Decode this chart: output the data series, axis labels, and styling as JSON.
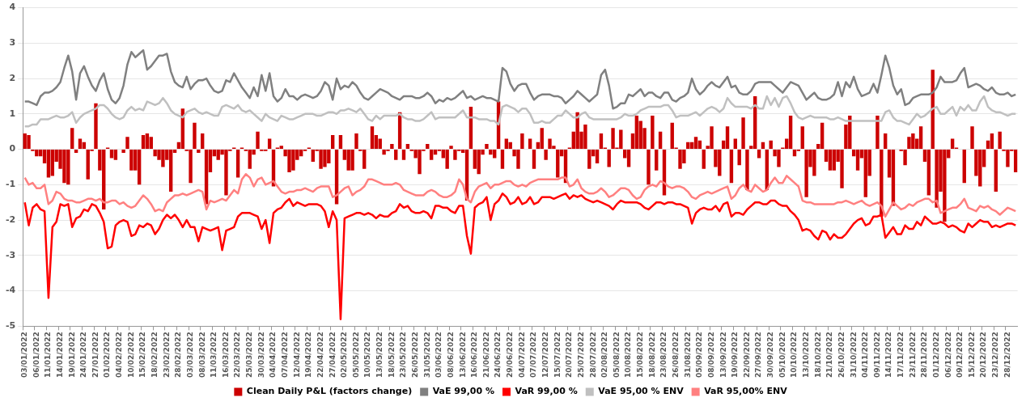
{
  "chart_data": {
    "type": "bar",
    "categories": [
      "03/01/2022",
      null,
      null,
      "06/01/2022",
      null,
      null,
      "11/01/2022",
      null,
      null,
      "14/01/2022",
      null,
      null,
      "19/01/2022",
      null,
      null,
      "24/01/2022",
      null,
      null,
      "27/01/2022",
      null,
      null,
      "01/02/2022",
      null,
      null,
      "04/02/2022",
      null,
      null,
      "10/02/2022",
      null,
      null,
      "15/02/2022",
      null,
      null,
      "18/02/2022",
      null,
      null,
      "23/02/2022",
      null,
      null,
      "28/02/2022",
      null,
      null,
      "03/03/2022",
      null,
      null,
      "08/03/2022",
      null,
      null,
      "11/03/2022",
      null,
      null,
      "16/03/2022",
      null,
      null,
      "22/03/2022",
      null,
      null,
      "25/03/2022",
      null,
      null,
      "30/03/2022",
      null,
      null,
      "04/04/2022",
      null,
      null,
      "07/04/2022",
      null,
      null,
      "12/04/2022",
      null,
      null,
      "19/04/2022",
      null,
      null,
      "22/04/2022",
      null,
      null,
      "27/04/2022",
      null,
      null,
      "02/05/2022",
      null,
      null,
      "05/05/2022",
      null,
      null,
      "10/05/2022",
      null,
      null,
      "13/05/2022",
      null,
      null,
      "18/05/2022",
      null,
      null,
      "23/05/2022",
      null,
      null,
      "26/05/2022",
      null,
      null,
      "31/05/2022",
      null,
      null,
      "03/06/2022",
      null,
      null,
      "08/06/2022",
      null,
      null,
      "13/06/2022",
      null,
      null,
      "16/06/2022",
      null,
      null,
      "21/06/2022",
      null,
      null,
      "24/06/2022",
      null,
      null,
      "29/06/2022",
      null,
      null,
      "04/07/2022",
      null,
      null,
      "07/07/2022",
      null,
      null,
      "12/07/2022",
      null,
      null,
      "15/07/2022",
      null,
      null,
      "20/07/2022",
      null,
      null,
      "25/07/2022",
      null,
      null,
      "28/07/2022",
      null,
      null,
      "02/08/2022",
      null,
      null,
      "05/08/2022",
      null,
      null,
      "10/08/2022",
      null,
      null,
      "15/08/2022",
      null,
      null,
      "18/08/2022",
      null,
      null,
      "23/08/2022",
      null,
      null,
      "26/08/2022",
      null,
      null,
      "31/08/2022",
      null,
      null,
      "05/09/2022",
      null,
      null,
      "08/09/2022",
      null,
      null,
      "13/09/2022",
      null,
      null,
      "19/09/2022",
      null,
      null,
      "22/09/2022",
      null,
      null,
      "27/09/2022",
      null,
      null,
      "30/09/2022",
      null,
      null,
      "05/10/2022",
      null,
      null,
      "10/10/2022",
      null,
      null,
      "13/10/2022",
      null,
      null,
      "18/10/2022",
      null,
      null,
      "21/10/2022",
      null,
      null,
      "26/10/2022",
      null,
      null,
      "31/10/2022",
      null,
      null,
      "04/11/2022",
      null,
      null,
      "09/11/2022",
      null,
      null,
      "14/11/2022",
      null,
      null,
      "17/11/2022",
      null,
      null,
      "23/11/2022",
      null,
      null,
      "28/11/2022",
      null,
      null,
      "01/12/2022",
      null,
      null,
      "06/12/2022",
      null,
      null,
      "09/12/2022",
      null,
      null,
      "15/12/2022",
      null,
      null,
      "20/12/2022",
      null,
      null,
      "23/12/2022",
      null,
      null,
      "28/12/2022",
      null,
      null
    ],
    "series": [
      {
        "name": "Clean Daily P&L (factors change)",
        "color": "#cc0000",
        "values": [
          0.45,
          0.4,
          -0.05,
          -0.2,
          -0.2,
          -0.4,
          -0.8,
          -0.75,
          -0.35,
          -0.55,
          -0.95,
          -1.0,
          0.6,
          -0.1,
          0.3,
          0.2,
          -0.85,
          -0.05,
          1.3,
          -0.6,
          -1.7,
          0.05,
          -0.25,
          -0.3,
          0.0,
          -0.1,
          0.35,
          -0.6,
          -0.6,
          -1.0,
          0.4,
          0.45,
          0.35,
          -0.2,
          -0.3,
          -0.5,
          -0.3,
          -1.2,
          -0.1,
          0.2,
          1.15,
          -0.05,
          -0.95,
          0.75,
          -0.1,
          0.45,
          -1.55,
          -0.65,
          -0.2,
          -0.3,
          -0.15,
          -1.3,
          -0.05,
          0.05,
          -0.8,
          0.05,
          -0.05,
          -0.55,
          -0.15,
          0.5,
          -0.05,
          -0.05,
          0.3,
          -1.05,
          0.05,
          0.1,
          -0.2,
          -0.65,
          -0.6,
          -0.3,
          -0.2,
          -0.05,
          0.05,
          -0.35,
          -0.05,
          -0.55,
          -0.5,
          -0.4,
          0.4,
          -1.55,
          0.4,
          -0.3,
          -0.6,
          -0.6,
          0.45,
          -0.05,
          -0.55,
          0.0,
          0.65,
          0.4,
          0.3,
          -0.15,
          -0.05,
          0.15,
          -0.3,
          1.05,
          -0.3,
          0.15,
          -0.05,
          -0.25,
          -0.7,
          -0.05,
          0.15,
          -0.3,
          -0.15,
          -0.05,
          -0.25,
          -0.55,
          0.1,
          -0.3,
          -0.05,
          -0.1,
          -1.45,
          1.2,
          -0.55,
          -0.7,
          -0.15,
          0.15,
          -0.15,
          -0.25,
          1.35,
          -0.55,
          0.3,
          0.2,
          -0.2,
          -0.55,
          0.45,
          0.0,
          0.3,
          -0.55,
          0.2,
          0.6,
          -0.3,
          0.3,
          0.1,
          -0.8,
          -0.2,
          -0.95,
          0.05,
          0.5,
          1.05,
          0.5,
          0.7,
          -0.55,
          -0.2,
          -0.4,
          0.45,
          0.05,
          -0.5,
          0.6,
          0.05,
          0.55,
          -0.25,
          -0.5,
          0.45,
          0.95,
          0.8,
          0.6,
          -1.0,
          0.95,
          -0.6,
          0.5,
          -1.3,
          0.0,
          0.75,
          0.05,
          -0.55,
          -0.4,
          0.2,
          0.2,
          0.35,
          0.25,
          -0.55,
          0.1,
          0.65,
          -0.5,
          -0.75,
          0.25,
          0.65,
          -0.95,
          0.3,
          -0.45,
          0.9,
          -1.15,
          0.1,
          1.5,
          -0.25,
          0.2,
          -1.15,
          0.25,
          -0.2,
          -0.5,
          0.05,
          0.3,
          0.95,
          -0.2,
          -0.05,
          0.65,
          -1.35,
          -0.5,
          -0.75,
          0.15,
          0.75,
          -0.35,
          -0.6,
          -0.6,
          -0.35,
          -1.1,
          0.7,
          0.95,
          -0.2,
          -0.6,
          -0.25,
          -1.35,
          -0.75,
          0.0,
          0.95,
          -1.9,
          0.45,
          -0.8,
          -1.6,
          0.0,
          -0.05,
          -0.45,
          0.35,
          0.45,
          0.3,
          0.65,
          -0.35,
          -1.3,
          2.25,
          -1.65,
          -1.2,
          -2.05,
          -0.25,
          0.3,
          0.05,
          0.0,
          -0.95,
          0.0,
          0.65,
          -0.75,
          -1.05,
          -0.5,
          0.25,
          0.45,
          -1.2,
          0.5,
          -0.05,
          -0.5,
          -0.05,
          -0.65
        ]
      },
      {
        "name": "VaE 99,00 %",
        "type": "line",
        "color": "#808080",
        "values": [
          1.35,
          1.35,
          1.3,
          1.25,
          1.5,
          1.6,
          1.6,
          1.65,
          1.75,
          1.9,
          2.3,
          2.65,
          2.2,
          1.4,
          2.15,
          2.35,
          2.05,
          1.8,
          1.65,
          1.95,
          2.15,
          1.7,
          1.4,
          1.3,
          1.45,
          1.8,
          2.4,
          2.75,
          2.6,
          2.7,
          2.8,
          2.25,
          2.35,
          2.5,
          2.65,
          2.65,
          2.7,
          2.2,
          1.9,
          1.8,
          1.75,
          2.05,
          1.7,
          1.85,
          1.95,
          1.95,
          2.0,
          1.8,
          1.65,
          1.6,
          1.65,
          1.95,
          1.9,
          2.15,
          1.95,
          1.75,
          1.6,
          1.45,
          1.75,
          1.5,
          2.1,
          1.65,
          2.15,
          1.5,
          1.35,
          1.45,
          1.7,
          1.5,
          1.5,
          1.4,
          1.5,
          1.55,
          1.5,
          1.45,
          1.5,
          1.65,
          1.9,
          1.8,
          1.4,
          2.0,
          1.7,
          1.8,
          1.75,
          1.9,
          1.8,
          1.6,
          1.45,
          1.4,
          1.5,
          1.6,
          1.7,
          1.65,
          1.6,
          1.5,
          1.45,
          1.4,
          1.5,
          1.5,
          1.5,
          1.45,
          1.45,
          1.5,
          1.6,
          1.5,
          1.3,
          1.4,
          1.35,
          1.45,
          1.4,
          1.45,
          1.55,
          1.65,
          1.45,
          1.5,
          1.4,
          1.45,
          1.5,
          1.45,
          1.45,
          1.4,
          1.35,
          2.3,
          2.2,
          1.85,
          1.65,
          1.8,
          1.85,
          1.85,
          1.6,
          1.4,
          1.5,
          1.55,
          1.55,
          1.55,
          1.5,
          1.5,
          1.45,
          1.3,
          1.4,
          1.5,
          1.65,
          1.55,
          1.45,
          1.35,
          1.45,
          1.55,
          2.1,
          2.25,
          1.8,
          1.15,
          1.2,
          1.3,
          1.3,
          1.55,
          1.5,
          1.6,
          1.7,
          1.5,
          1.6,
          1.6,
          1.5,
          1.45,
          1.6,
          1.6,
          1.4,
          1.35,
          1.45,
          1.5,
          1.6,
          2.0,
          1.7,
          1.55,
          1.65,
          1.8,
          1.9,
          1.8,
          1.75,
          1.9,
          2.05,
          1.75,
          1.8,
          1.6,
          1.55,
          1.55,
          1.65,
          1.85,
          1.9,
          1.9,
          1.9,
          1.9,
          1.8,
          1.7,
          1.6,
          1.75,
          1.9,
          1.85,
          1.8,
          1.6,
          1.4,
          1.5,
          1.6,
          1.45,
          1.4,
          1.4,
          1.45,
          1.55,
          1.9,
          1.5,
          1.9,
          1.75,
          2.05,
          1.7,
          1.5,
          1.55,
          1.6,
          1.85,
          1.6,
          2.1,
          2.65,
          2.3,
          1.8,
          1.55,
          1.7,
          1.25,
          1.3,
          1.45,
          1.5,
          1.55,
          1.55,
          1.55,
          1.6,
          1.75,
          2.05,
          1.9,
          1.9,
          1.9,
          1.95,
          2.15,
          2.3,
          1.75,
          1.8,
          1.85,
          1.8,
          1.7,
          1.65,
          1.75,
          1.6,
          1.55,
          1.55,
          1.6,
          1.5,
          1.55
        ]
      },
      {
        "name": "VaR 99,00 %",
        "type": "line",
        "color": "#ff0000",
        "values": [
          -1.5,
          -2.15,
          -1.65,
          -1.55,
          -1.7,
          -1.75,
          -4.2,
          -2.2,
          -2.05,
          -1.55,
          -1.6,
          -1.55,
          -2.2,
          -1.95,
          -1.9,
          -1.7,
          -1.75,
          -1.55,
          -1.6,
          -1.8,
          -2.05,
          -2.8,
          -2.75,
          -2.15,
          -2.05,
          -2.0,
          -2.05,
          -2.45,
          -2.4,
          -2.15,
          -2.2,
          -2.1,
          -2.15,
          -2.4,
          -2.25,
          -2.0,
          -1.85,
          -1.95,
          -1.85,
          -2.0,
          -2.2,
          -2.0,
          -2.2,
          -2.2,
          -2.6,
          -2.2,
          -2.25,
          -2.3,
          -2.25,
          -2.2,
          -2.85,
          -2.3,
          -2.25,
          -2.2,
          -1.9,
          -1.8,
          -1.8,
          -1.8,
          -1.85,
          -1.9,
          -2.25,
          -2.0,
          -2.65,
          -1.8,
          -1.7,
          -1.65,
          -1.5,
          -1.4,
          -1.6,
          -1.5,
          -1.55,
          -1.6,
          -1.55,
          -1.55,
          -1.55,
          -1.6,
          -1.75,
          -2.2,
          -1.75,
          -2.0,
          -4.8,
          -1.95,
          -1.9,
          -1.85,
          -1.8,
          -1.8,
          -1.85,
          -1.8,
          -1.85,
          -1.95,
          -1.85,
          -1.9,
          -1.9,
          -1.8,
          -1.75,
          -1.55,
          -1.65,
          -1.6,
          -1.75,
          -1.8,
          -1.8,
          -1.75,
          -1.8,
          -1.95,
          -1.6,
          -1.6,
          -1.65,
          -1.65,
          -1.75,
          -1.8,
          -1.6,
          -1.6,
          -2.45,
          -2.95,
          -1.65,
          -1.55,
          -1.5,
          -1.35,
          -2.0,
          -1.55,
          -1.45,
          -1.25,
          -1.35,
          -1.55,
          -1.5,
          -1.35,
          -1.55,
          -1.5,
          -1.35,
          -1.55,
          -1.5,
          -1.35,
          -1.35,
          -1.35,
          -1.4,
          -1.35,
          -1.3,
          -1.25,
          -1.4,
          -1.3,
          -1.35,
          -1.3,
          -1.4,
          -1.45,
          -1.5,
          -1.45,
          -1.5,
          -1.55,
          -1.6,
          -1.7,
          -1.55,
          -1.45,
          -1.5,
          -1.5,
          -1.5,
          -1.5,
          -1.55,
          -1.65,
          -1.7,
          -1.6,
          -1.5,
          -1.5,
          -1.55,
          -1.5,
          -1.5,
          -1.55,
          -1.55,
          -1.6,
          -1.65,
          -2.1,
          -1.8,
          -1.7,
          -1.65,
          -1.7,
          -1.7,
          -1.6,
          -1.75,
          -1.55,
          -1.5,
          -1.9,
          -1.8,
          -1.8,
          -1.85,
          -1.7,
          -1.6,
          -1.5,
          -1.5,
          -1.55,
          -1.55,
          -1.45,
          -1.45,
          -1.55,
          -1.6,
          -1.6,
          -1.75,
          -1.85,
          -2.0,
          -2.3,
          -2.25,
          -2.3,
          -2.45,
          -2.55,
          -2.3,
          -2.35,
          -2.55,
          -2.4,
          -2.5,
          -2.5,
          -2.4,
          -2.25,
          -2.1,
          -2.0,
          -1.95,
          -2.15,
          -2.1,
          -1.9,
          -1.9,
          -1.85,
          -2.5,
          -2.35,
          -2.2,
          -2.4,
          -2.4,
          -2.15,
          -2.25,
          -2.25,
          -2.05,
          -2.15,
          -1.9,
          -2.0,
          -2.1,
          -2.1,
          -2.05,
          -2.1,
          -2.2,
          -2.15,
          -2.2,
          -2.3,
          -2.35,
          -2.1,
          -2.2,
          -2.1,
          -2.0,
          -2.05,
          -2.05,
          -2.2,
          -2.15,
          -2.2,
          -2.15,
          -2.1,
          -2.1,
          -2.15
        ]
      },
      {
        "name": "VaE 95,00 % ENV",
        "type": "line",
        "color": "#c0c0c0",
        "values": [
          0.65,
          0.65,
          0.7,
          0.7,
          0.85,
          0.85,
          0.85,
          0.9,
          0.95,
          0.9,
          0.9,
          0.95,
          1.05,
          0.75,
          0.9,
          1.0,
          1.05,
          1.1,
          1.15,
          1.25,
          1.25,
          1.15,
          1.0,
          0.9,
          0.85,
          0.9,
          1.1,
          1.2,
          1.1,
          1.15,
          1.1,
          1.35,
          1.3,
          1.25,
          1.3,
          1.45,
          1.3,
          1.1,
          1.0,
          0.95,
          0.9,
          1.05,
          1.1,
          1.15,
          1.05,
          1.0,
          1.05,
          1.0,
          0.95,
          0.95,
          1.2,
          1.25,
          1.2,
          1.15,
          1.25,
          1.1,
          1.05,
          1.1,
          1.0,
          0.9,
          0.8,
          1.0,
          0.9,
          0.85,
          0.8,
          0.95,
          0.9,
          0.85,
          0.85,
          0.9,
          0.95,
          1.0,
          1.0,
          1.0,
          0.95,
          0.95,
          1.0,
          1.05,
          1.05,
          1.0,
          1.1,
          1.1,
          1.15,
          1.1,
          1.05,
          1.15,
          1.0,
          0.85,
          0.8,
          0.95,
          0.85,
          0.95,
          0.95,
          0.95,
          0.95,
          1.0,
          0.9,
          0.85,
          0.85,
          0.8,
          0.8,
          0.85,
          0.95,
          1.05,
          0.85,
          0.9,
          0.9,
          0.9,
          0.9,
          0.9,
          1.0,
          1.1,
          0.9,
          0.9,
          0.9,
          0.85,
          0.85,
          0.85,
          0.8,
          0.8,
          0.7,
          1.2,
          1.25,
          1.2,
          1.15,
          1.05,
          1.15,
          1.15,
          1.0,
          0.75,
          0.75,
          0.8,
          0.75,
          0.75,
          0.85,
          0.95,
          0.95,
          1.1,
          1.0,
          0.9,
          0.9,
          1.0,
          1.05,
          0.9,
          0.85,
          0.85,
          0.85,
          0.85,
          0.85,
          0.85,
          0.85,
          0.9,
          1.0,
          0.95,
          0.95,
          1.0,
          1.1,
          1.15,
          1.2,
          1.2,
          1.2,
          1.2,
          1.25,
          1.25,
          1.1,
          0.9,
          0.95,
          0.95,
          0.95,
          1.0,
          1.05,
          0.95,
          1.05,
          1.15,
          1.2,
          1.15,
          1.05,
          1.15,
          1.45,
          1.3,
          1.2,
          1.2,
          1.2,
          1.2,
          1.15,
          1.25,
          1.15,
          1.15,
          1.5,
          1.25,
          1.45,
          1.2,
          1.45,
          1.5,
          1.3,
          1.05,
          0.9,
          0.85,
          0.9,
          0.95,
          0.9,
          0.9,
          0.9,
          0.9,
          0.85,
          0.85,
          0.9,
          0.85,
          0.8,
          0.8,
          0.8,
          0.8,
          0.8,
          0.8,
          0.8,
          0.8,
          0.8,
          0.8,
          1.05,
          1.1,
          0.9,
          0.8,
          0.8,
          0.75,
          0.7,
          0.85,
          1.0,
          0.9,
          0.95,
          1.05,
          1.15,
          1.2,
          1.0,
          1.0,
          1.1,
          1.2,
          0.95,
          1.2,
          1.1,
          1.25,
          1.1,
          1.1,
          1.35,
          1.5,
          1.2,
          1.1,
          1.05,
          1.05,
          1.0,
          0.95,
          1.0,
          1.0
        ]
      },
      {
        "name": "VaR 95,00% ENV",
        "type": "line",
        "color": "#ff8080",
        "values": [
          -0.8,
          -1.0,
          -0.95,
          -1.1,
          -1.1,
          -1.0,
          -1.55,
          -1.45,
          -1.2,
          -1.25,
          -1.4,
          -1.45,
          -1.45,
          -1.5,
          -1.5,
          -1.45,
          -1.4,
          -1.4,
          -1.45,
          -1.4,
          -1.5,
          -1.5,
          -1.45,
          -1.45,
          -1.55,
          -1.5,
          -1.6,
          -1.65,
          -1.6,
          -1.45,
          -1.3,
          -1.4,
          -1.55,
          -1.75,
          -1.7,
          -1.75,
          -1.5,
          -1.4,
          -1.3,
          -1.3,
          -1.25,
          -1.3,
          -1.25,
          -1.2,
          -1.15,
          -1.2,
          -1.7,
          -1.45,
          -1.5,
          -1.45,
          -1.4,
          -1.45,
          -1.3,
          -1.15,
          -1.25,
          -0.85,
          -0.7,
          -0.8,
          -1.05,
          -0.85,
          -0.8,
          -1.0,
          -0.95,
          -0.9,
          -1.05,
          -1.2,
          -1.25,
          -1.2,
          -1.2,
          -1.15,
          -1.15,
          -1.1,
          -1.15,
          -1.2,
          -1.1,
          -1.05,
          -1.05,
          -1.05,
          -1.35,
          -1.3,
          -1.2,
          -1.1,
          -1.05,
          -1.3,
          -1.2,
          -1.15,
          -1.05,
          -0.85,
          -0.85,
          -0.9,
          -0.95,
          -1.0,
          -1.0,
          -1.0,
          -0.95,
          -1.0,
          -1.15,
          -1.2,
          -1.25,
          -1.3,
          -1.3,
          -1.3,
          -1.2,
          -1.15,
          -1.2,
          -1.3,
          -1.35,
          -1.35,
          -1.3,
          -1.2,
          -0.85,
          -1.0,
          -1.4,
          -1.5,
          -1.2,
          -1.05,
          -1.0,
          -0.95,
          -1.1,
          -1.0,
          -1.0,
          -0.95,
          -0.9,
          -0.9,
          -1.0,
          -1.05,
          -1.0,
          -1.05,
          -0.95,
          -0.9,
          -0.85,
          -0.85,
          -0.85,
          -0.85,
          -0.85,
          -0.85,
          -0.8,
          -0.8,
          -1.05,
          -1.0,
          -0.85,
          -1.1,
          -1.2,
          -1.25,
          -1.25,
          -1.2,
          -1.1,
          -1.2,
          -1.35,
          -1.3,
          -1.2,
          -1.1,
          -1.1,
          -1.15,
          -1.3,
          -1.4,
          -1.35,
          -1.15,
          -1.05,
          -1.0,
          -1.05,
          -0.9,
          -0.95,
          -1.05,
          -1.1,
          -1.05,
          -1.05,
          -1.1,
          -1.2,
          -1.35,
          -1.4,
          -1.3,
          -1.25,
          -1.2,
          -1.25,
          -1.2,
          -1.15,
          -1.1,
          -1.05,
          -1.4,
          -1.3,
          -1.1,
          -1.0,
          -1.15,
          -1.2,
          -1.0,
          -1.1,
          -1.2,
          -1.15,
          -0.95,
          -0.8,
          -0.95,
          -0.95,
          -0.75,
          -0.85,
          -0.95,
          -1.05,
          -1.45,
          -1.5,
          -1.5,
          -1.55,
          -1.55,
          -1.55,
          -1.55,
          -1.55,
          -1.55,
          -1.5,
          -1.5,
          -1.45,
          -1.5,
          -1.55,
          -1.5,
          -1.45,
          -1.55,
          -1.6,
          -1.55,
          -1.5,
          -1.6,
          -1.9,
          -1.7,
          -1.5,
          -1.6,
          -1.7,
          -1.65,
          -1.55,
          -1.6,
          -1.5,
          -1.45,
          -1.4,
          -1.4,
          -1.5,
          -1.45,
          -1.8,
          -1.75,
          -1.7,
          -1.65,
          -1.65,
          -1.55,
          -1.4,
          -1.65,
          -1.7,
          -1.75,
          -1.6,
          -1.65,
          -1.6,
          -1.7,
          -1.75,
          -1.85,
          -1.75,
          -1.65,
          -1.7,
          -1.75
        ]
      }
    ],
    "ylim": [
      -5,
      4
    ],
    "yticks": [
      -5,
      -4,
      -3,
      -2,
      -1,
      0,
      1,
      2,
      3,
      4
    ],
    "grid": "y",
    "legend": "bottom",
    "marker": "none",
    "line_style": "solid"
  }
}
